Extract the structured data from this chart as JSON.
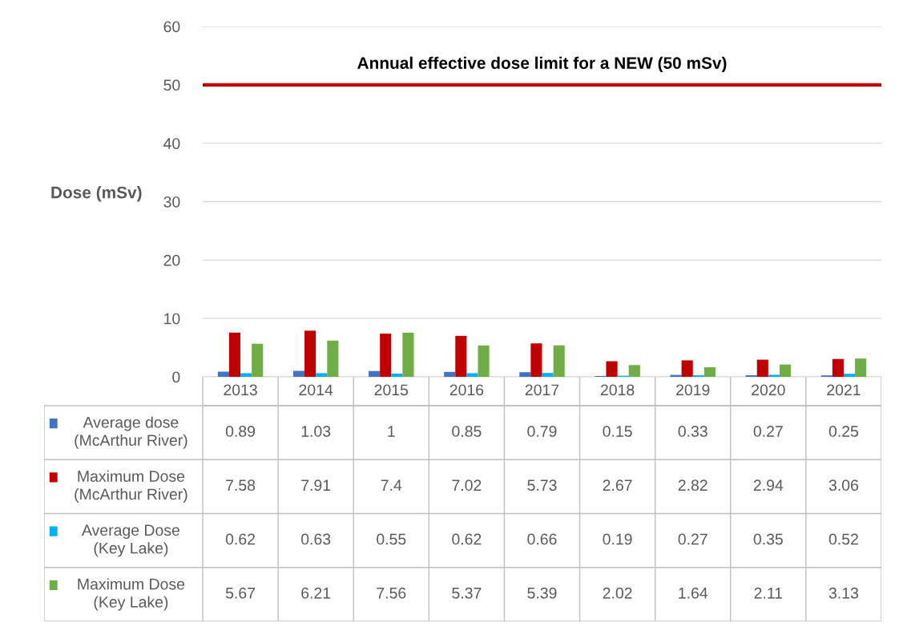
{
  "chart_data": {
    "type": "bar",
    "ylabel": "Dose (mSv)",
    "categories": [
      "2013",
      "2014",
      "2015",
      "2016",
      "2017",
      "2018",
      "2019",
      "2020",
      "2021"
    ],
    "series": [
      {
        "name": "Average dose\n(McArthur River)",
        "color": "#4472c4",
        "values": [
          0.89,
          1.03,
          1,
          0.85,
          0.79,
          0.15,
          0.33,
          0.27,
          0.25
        ]
      },
      {
        "name": "Maximum Dose\n(McArthur River)",
        "color": "#c00000",
        "values": [
          7.58,
          7.91,
          7.4,
          7.02,
          5.73,
          2.67,
          2.82,
          2.94,
          3.06
        ]
      },
      {
        "name": "Average Dose\n(Key Lake)",
        "color": "#00b0f0",
        "values": [
          0.62,
          0.63,
          0.55,
          0.62,
          0.66,
          0.19,
          0.27,
          0.35,
          0.52
        ]
      },
      {
        "name": "Maximum Dose\n(Key Lake)",
        "color": "#70ad47",
        "values": [
          5.67,
          6.21,
          7.56,
          5.37,
          5.39,
          2.02,
          1.64,
          2.11,
          3.13
        ]
      }
    ],
    "ylim": [
      0,
      60
    ],
    "yticks": [
      0,
      10,
      20,
      30,
      40,
      50,
      60
    ],
    "grid": "y",
    "ref_lines": [
      {
        "axis": "y",
        "value": 50,
        "label": "Annual effective dose limit for a NEW (50 mSv)",
        "color": "#c00000"
      }
    ],
    "data_labels": true,
    "legend": "left"
  }
}
